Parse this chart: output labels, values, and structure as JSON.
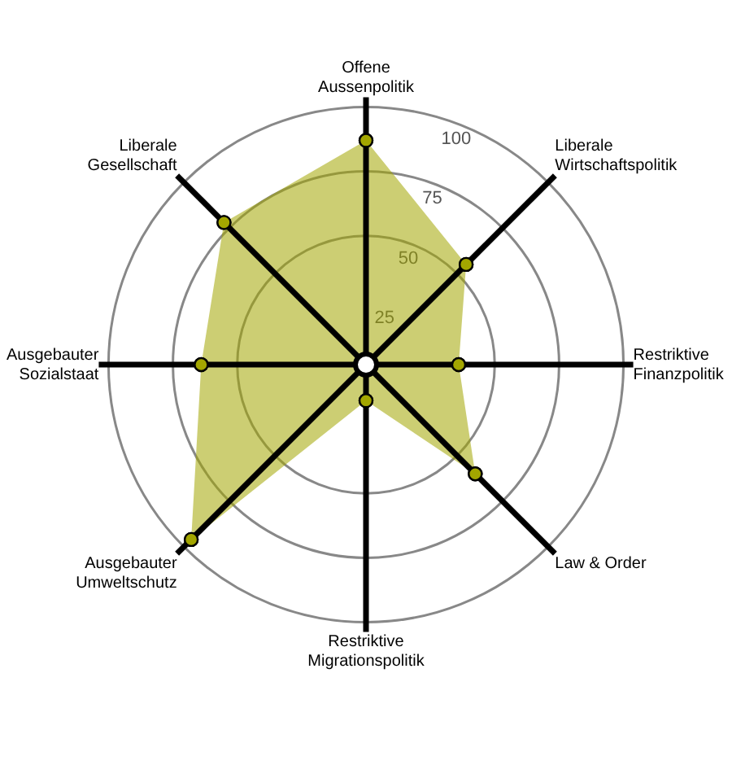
{
  "chart_data": {
    "type": "radar",
    "categories": [
      "Offene Aussenpolitik",
      "Liberale Wirtschaftspolitik",
      "Restriktive Finanzpolitik",
      "Law & Order",
      "Restriktive Migrationspolitik",
      "Ausgebauter Umweltschutz",
      "Ausgebauter Sozialstaat",
      "Liberale Gesellschaft"
    ],
    "series": [
      {
        "color": "#a3a600",
        "values": [
          87,
          55,
          36,
          60,
          14,
          96,
          64,
          78
        ]
      }
    ],
    "ylim": [
      0,
      100
    ],
    "yticks": [
      25,
      50,
      75,
      100
    ],
    "grid": true,
    "legend": false,
    "marker": "circle"
  }
}
